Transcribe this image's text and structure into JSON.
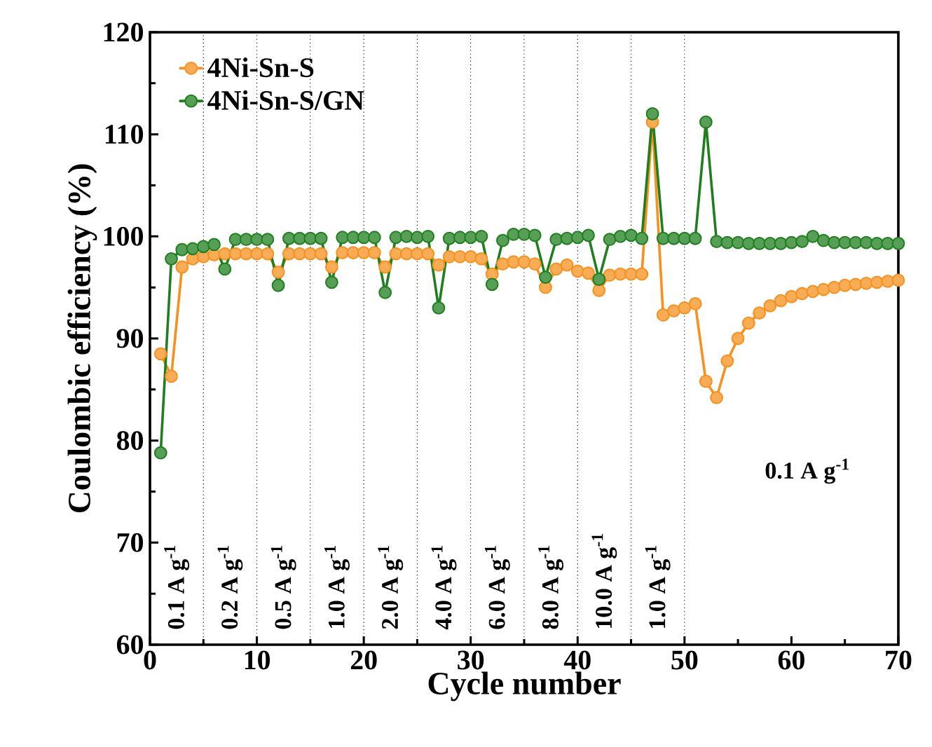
{
  "chart_data": {
    "type": "line",
    "xlabel": "Cycle number",
    "ylabel": "Coulombic efficiency (%)",
    "x": [
      1,
      2,
      3,
      4,
      5,
      6,
      7,
      8,
      9,
      10,
      11,
      12,
      13,
      14,
      15,
      16,
      17,
      18,
      19,
      20,
      21,
      22,
      23,
      24,
      25,
      26,
      27,
      28,
      29,
      30,
      31,
      32,
      33,
      34,
      35,
      36,
      37,
      38,
      39,
      40,
      41,
      42,
      43,
      44,
      45,
      46,
      47,
      48,
      49,
      50,
      51,
      52,
      53,
      54,
      55,
      56,
      57,
      58,
      59,
      60,
      61,
      62,
      63,
      64,
      65,
      66,
      67,
      68,
      69,
      70
    ],
    "series": [
      {
        "name": "4Ni-Sn-S",
        "color": "#f7901e",
        "values": [
          88.5,
          86.3,
          97.0,
          97.8,
          98.0,
          98.2,
          98.3,
          98.3,
          98.3,
          98.3,
          98.3,
          96.5,
          98.3,
          98.3,
          98.3,
          98.3,
          97.0,
          98.4,
          98.4,
          98.4,
          98.4,
          97.0,
          98.3,
          98.3,
          98.3,
          98.3,
          97.2,
          98.0,
          98.0,
          98.0,
          97.8,
          96.3,
          97.3,
          97.5,
          97.5,
          97.3,
          95.0,
          96.8,
          97.2,
          96.6,
          96.4,
          94.7,
          96.2,
          96.3,
          96.3,
          96.3,
          111.2,
          92.3,
          92.7,
          93.0,
          93.4,
          85.8,
          84.2,
          87.8,
          90.0,
          91.5,
          92.5,
          93.2,
          93.7,
          94.1,
          94.4,
          94.6,
          94.8,
          95.0,
          95.2,
          95.3,
          95.4,
          95.5,
          95.6,
          95.7
        ]
      },
      {
        "name": "4Ni-Sn-S/GN",
        "color": "#1f7f1f",
        "values": [
          78.8,
          97.8,
          98.7,
          98.8,
          99.0,
          99.2,
          96.8,
          99.7,
          99.7,
          99.7,
          99.7,
          95.2,
          99.8,
          99.8,
          99.8,
          99.8,
          95.5,
          99.9,
          99.9,
          99.9,
          99.9,
          94.5,
          99.9,
          100.0,
          99.9,
          100.0,
          93.0,
          99.8,
          99.9,
          99.9,
          100.0,
          95.3,
          99.6,
          100.2,
          100.2,
          100.1,
          96.0,
          99.7,
          99.8,
          99.9,
          100.1,
          95.8,
          99.7,
          100.0,
          100.1,
          99.8,
          112.0,
          99.8,
          99.8,
          99.8,
          99.8,
          111.2,
          99.5,
          99.4,
          99.4,
          99.3,
          99.3,
          99.3,
          99.3,
          99.4,
          99.5,
          100.0,
          99.6,
          99.4,
          99.4,
          99.4,
          99.4,
          99.3,
          99.3,
          99.3
        ]
      }
    ],
    "xlim": [
      0,
      70
    ],
    "xticks": [
      0,
      10,
      20,
      30,
      40,
      50,
      60,
      70
    ],
    "ylim": [
      60,
      120
    ],
    "yticks": [
      60,
      70,
      80,
      90,
      100,
      110,
      120
    ],
    "ref_lines": [
      {
        "axis": "x",
        "value": 5,
        "line_style": "dotted",
        "color": "#000000"
      },
      {
        "axis": "x",
        "value": 10,
        "line_style": "dotted",
        "color": "#000000"
      },
      {
        "axis": "x",
        "value": 15,
        "line_style": "dotted",
        "color": "#000000"
      },
      {
        "axis": "x",
        "value": 20,
        "line_style": "dotted",
        "color": "#000000"
      },
      {
        "axis": "x",
        "value": 25,
        "line_style": "dotted",
        "color": "#000000"
      },
      {
        "axis": "x",
        "value": 30,
        "line_style": "dotted",
        "color": "#000000"
      },
      {
        "axis": "x",
        "value": 35,
        "line_style": "dotted",
        "color": "#000000"
      },
      {
        "axis": "x",
        "value": 40,
        "line_style": "dotted",
        "color": "#000000"
      },
      {
        "axis": "x",
        "value": 45,
        "line_style": "dotted",
        "color": "#000000"
      },
      {
        "axis": "x",
        "value": 50,
        "line_style": "dotted",
        "color": "#000000"
      }
    ],
    "annotations": [
      "0.1 A g$^{-1}$",
      "0.2 A g$^{-1}$",
      "0.5 A g$^{-1}$",
      "1.0 A g$^{-1}$",
      "2.0 A g$^{-1}$",
      "4.0 A g$^{-1}$",
      "6.0 A g$^{-1}$",
      "8.0 A g$^{-1}$",
      "10.0 A g$^{-1}$",
      "1.0 A g$^{-1}$",
      "0.1 A g$^{-1}$"
    ],
    "legend": "top left",
    "grid": false,
    "marker": "circle",
    "line_style": "solid"
  }
}
